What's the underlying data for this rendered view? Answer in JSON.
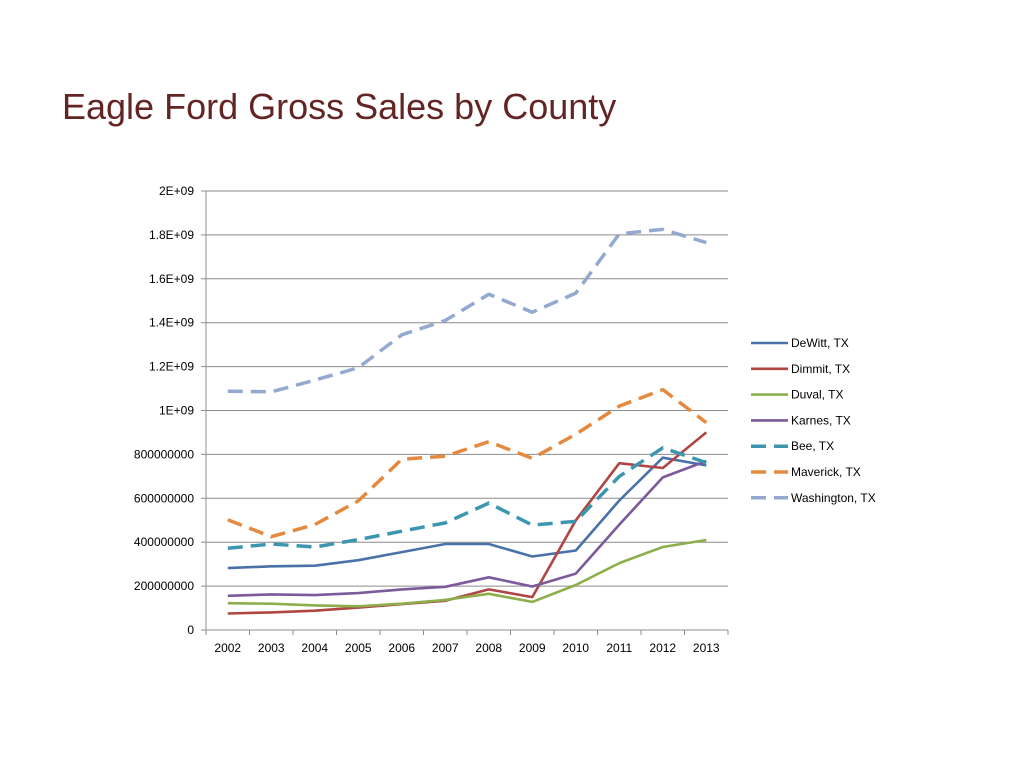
{
  "slide": {
    "title": "Eagle Ford Gross Sales by County"
  },
  "chart_data": {
    "type": "line",
    "title": "",
    "xlabel": "",
    "ylabel": "",
    "categories": [
      "2002",
      "2003",
      "2004",
      "2005",
      "2006",
      "2007",
      "2008",
      "2009",
      "2010",
      "2011",
      "2012",
      "2013"
    ],
    "ylim": [
      0,
      2000000000
    ],
    "y_ticks": [
      {
        "value": 0,
        "label": "0"
      },
      {
        "value": 200000000,
        "label": "200000000"
      },
      {
        "value": 400000000,
        "label": "400000000"
      },
      {
        "value": 600000000,
        "label": "600000000"
      },
      {
        "value": 800000000,
        "label": "800000000"
      },
      {
        "value": 1000000000,
        "label": "1E+09"
      },
      {
        "value": 1200000000,
        "label": "1.2E+09"
      },
      {
        "value": 1400000000,
        "label": "1.4E+09"
      },
      {
        "value": 1600000000,
        "label": "1.6E+09"
      },
      {
        "value": 1800000000,
        "label": "1.8E+09"
      },
      {
        "value": 2000000000,
        "label": "2E+09"
      }
    ],
    "grid": "horizontal",
    "legend_position": "right",
    "series": [
      {
        "name": "DeWitt, TX",
        "color": "#4a72a8",
        "style": "solid",
        "values": [
          282000000,
          290000000,
          293000000,
          318000000,
          355000000,
          392000000,
          392000000,
          335000000,
          362000000,
          590000000,
          785000000,
          750000000
        ]
      },
      {
        "name": "Dimmit, TX",
        "color": "#b04643",
        "style": "solid",
        "values": [
          75000000,
          80000000,
          88000000,
          102000000,
          118000000,
          133000000,
          185000000,
          150000000,
          500000000,
          760000000,
          738000000,
          900000000
        ]
      },
      {
        "name": "Duval, TX",
        "color": "#8dae4c",
        "style": "solid",
        "values": [
          122000000,
          120000000,
          112000000,
          108000000,
          120000000,
          137000000,
          165000000,
          128000000,
          205000000,
          305000000,
          378000000,
          410000000
        ]
      },
      {
        "name": "Karnes, TX",
        "color": "#7c5a9c",
        "style": "solid",
        "values": [
          156000000,
          162000000,
          159000000,
          168000000,
          185000000,
          197000000,
          240000000,
          198000000,
          257000000,
          480000000,
          695000000,
          770000000
        ]
      },
      {
        "name": "Bee, TX",
        "color": "#3d96b0",
        "style": "dashed",
        "values": [
          372000000,
          392000000,
          378000000,
          412000000,
          450000000,
          488000000,
          578000000,
          478000000,
          495000000,
          700000000,
          830000000,
          762000000
        ]
      },
      {
        "name": "Maverick, TX",
        "color": "#e5893e",
        "style": "dashed",
        "values": [
          502000000,
          425000000,
          480000000,
          588000000,
          778000000,
          792000000,
          858000000,
          782000000,
          892000000,
          1020000000,
          1095000000,
          945000000
        ]
      },
      {
        "name": "Washington, TX",
        "color": "#93a9cf",
        "style": "dashed",
        "values": [
          1088000000,
          1085000000,
          1138000000,
          1195000000,
          1345000000,
          1410000000,
          1530000000,
          1448000000,
          1535000000,
          1805000000,
          1825000000,
          1765000000
        ]
      }
    ]
  }
}
